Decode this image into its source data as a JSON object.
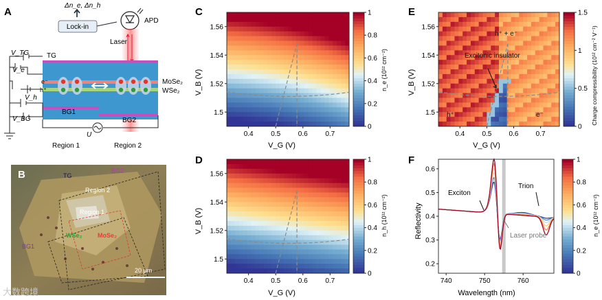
{
  "panels": {
    "A": {
      "letter": "A",
      "delta_label": "Δn_e, Δn_h",
      "lockin": "Lock-in",
      "apd": "APD",
      "laser": "Laser",
      "tg": "TG",
      "mose2": "MoSe₂",
      "wse2": "WSe₂",
      "bg1": "BG1",
      "bg2": "BG2",
      "region1": "Region 1",
      "region2": "Region 2",
      "e_label": "e⁻",
      "h_label": "h⁺",
      "vtg": "V_TG",
      "ve": "V_e",
      "vh": "V_h",
      "vbg": "V_BG",
      "u_label": "U"
    },
    "B": {
      "letter": "B",
      "tg": "TG",
      "bg1": "BG1",
      "bg2": "BG2",
      "region1": "Region 1",
      "region2": "Region 2",
      "wse2": "WSe₂",
      "mose2": "MoSe₂",
      "scalebar": "20 µm",
      "watermark": "大数跨境"
    },
    "C": {
      "letter": "C",
      "xlabel": "V_G (V)",
      "ylabel": "V_B (V)",
      "cbar_label": "n_e (10¹² cm⁻²)",
      "cbar_ticks": [
        "0",
        "0.2",
        "0.4",
        "0.6",
        "0.8",
        "1"
      ]
    },
    "D": {
      "letter": "D",
      "xlabel": "V_G (V)",
      "ylabel": "V_B (V)",
      "cbar_label": "n_h (10¹² cm⁻²)",
      "cbar_ticks": [
        "0",
        "0.2",
        "0.4",
        "0.6",
        "0.8",
        "1"
      ]
    },
    "E": {
      "letter": "E",
      "xlabel": "V_G (V)",
      "ylabel": "V_B (V)",
      "cbar_label": "Charge compressibility (10¹² cm⁻² V⁻¹)",
      "cbar_ticks": [
        "0",
        "0.5",
        "1",
        "1.5"
      ],
      "annot_eh": "h⁺ + e⁻",
      "annot_ei": "Excitonic insulator",
      "annot_h": "h⁺",
      "annot_e": "e⁻"
    },
    "F": {
      "letter": "F",
      "xlabel": "Wavelength (nm)",
      "ylabel": "Reflectivity",
      "cbar_label": "n_e (10¹² cm⁻²)",
      "cbar_ticks": [
        "0",
        "0.2",
        "0.4",
        "0.6",
        "0.8",
        "1"
      ],
      "annot_exciton": "Exciton",
      "annot_trion": "Trion",
      "annot_laser": "Laser probe"
    }
  },
  "chart_data": [
    {
      "type": "heatmap",
      "panel": "C",
      "title": "",
      "xlabel": "V_G (V)",
      "ylabel": "V_B (V)",
      "x_ticks": [
        0.4,
        0.5,
        0.6,
        0.7
      ],
      "y_ticks": [
        1.5,
        1.52,
        1.54,
        1.56
      ],
      "xlim": [
        0.32,
        0.77
      ],
      "ylim": [
        1.49,
        1.57
      ],
      "z_label": "n_e (10^12 cm^-2)",
      "zlim": [
        0,
        1
      ],
      "cmap": "RdYlBu_r"
    },
    {
      "type": "heatmap",
      "panel": "D",
      "xlabel": "V_G (V)",
      "ylabel": "V_B (V)",
      "x_ticks": [
        0.4,
        0.5,
        0.6,
        0.7
      ],
      "y_ticks": [
        1.5,
        1.52,
        1.54,
        1.56
      ],
      "xlim": [
        0.32,
        0.77
      ],
      "ylim": [
        1.49,
        1.57
      ],
      "z_label": "n_h (10^12 cm^-2)",
      "zlim": [
        0,
        1
      ],
      "cmap": "RdYlBu_r"
    },
    {
      "type": "heatmap",
      "panel": "E",
      "xlabel": "V_G (V)",
      "ylabel": "V_B (V)",
      "x_ticks": [
        0.4,
        0.5,
        0.6,
        0.7
      ],
      "y_ticks": [
        1.5,
        1.52,
        1.54,
        1.56
      ],
      "xlim": [
        0.32,
        0.77
      ],
      "ylim": [
        1.49,
        1.57
      ],
      "z_label": "Charge compressibility (10^12 cm^-2 V^-1)",
      "zlim": [
        0,
        1.5
      ],
      "cmap": "RdYlBu_r"
    },
    {
      "type": "line",
      "panel": "F",
      "xlabel": "Wavelength (nm)",
      "ylabel": "Reflectivity",
      "x_ticks": [
        740,
        750,
        760
      ],
      "y_ticks": [
        0.2,
        0.3,
        0.4,
        0.5,
        0.6
      ],
      "xlim": [
        738,
        768
      ],
      "ylim": [
        0.16,
        0.64
      ],
      "laser_probe_nm": 755,
      "exciton_nm": 753.5,
      "trion_nm": 766,
      "series": [
        {
          "name": "n_e = 0",
          "n_e": 0
        },
        {
          "name": "n_e = 0.2",
          "n_e": 0.2
        },
        {
          "name": "n_e = 0.4",
          "n_e": 0.4
        },
        {
          "name": "n_e = 0.6",
          "n_e": 0.6
        },
        {
          "name": "n_e = 0.8",
          "n_e": 0.8
        },
        {
          "name": "n_e = 1",
          "n_e": 1
        }
      ]
    }
  ]
}
